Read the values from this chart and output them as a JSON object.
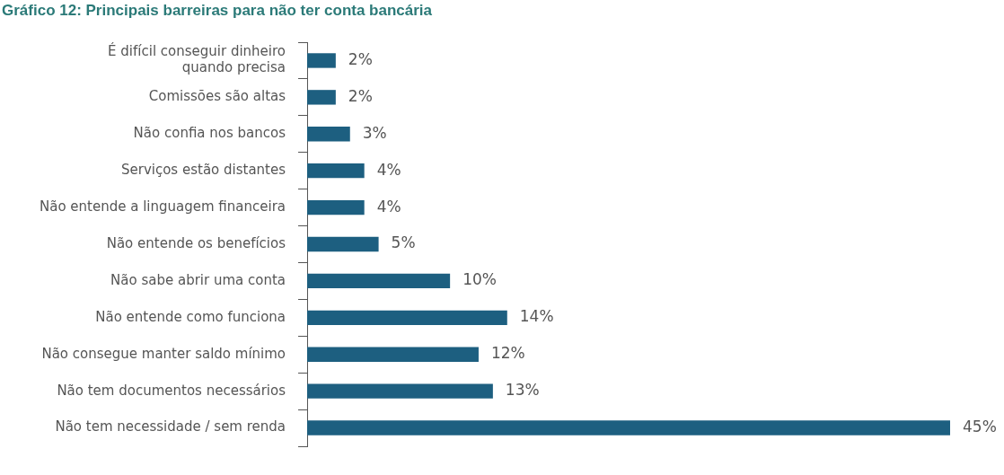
{
  "chart_data": {
    "type": "bar",
    "orientation": "horizontal",
    "title": "Gráfico 12: Principais barreiras para não ter conta bancária",
    "categories": [
      "É difícil conseguir dinheiro quando precisa",
      "Comissões são altas",
      "Não confia nos bancos",
      "Serviços estão distantes",
      "Não entende a linguagem financeira",
      "Não entende os benefícios",
      "Não sabe abrir uma conta",
      "Não entende como funciona",
      "Não consegue manter saldo mínimo",
      "Não tem documentos necessários",
      "Não tem necessidade / sem renda"
    ],
    "values": [
      2,
      2,
      3,
      4,
      4,
      5,
      10,
      14,
      12,
      13,
      45
    ],
    "value_labels": [
      "2%",
      "2%",
      "3%",
      "4%",
      "4%",
      "5%",
      "10%",
      "14%",
      "12%",
      "13%",
      "45%"
    ],
    "color": "#1d5f80",
    "grid": false,
    "legend": false,
    "tick_labels": "y"
  }
}
